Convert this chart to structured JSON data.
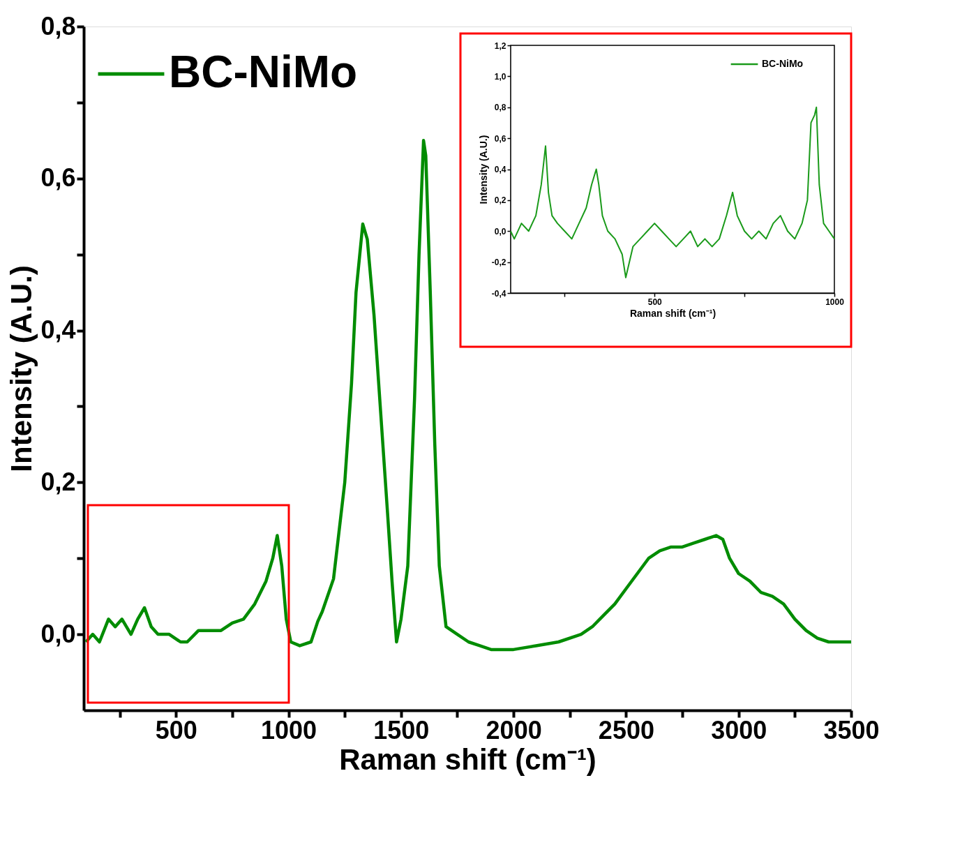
{
  "chart_data": [
    {
      "type": "line",
      "xlabel": "Raman shift (cm⁻¹)",
      "ylabel": "Intensity (A.U.)",
      "legend": "top left",
      "grid": false,
      "xlim": [
        90,
        3500
      ],
      "ylim": [
        -0.1,
        0.8
      ],
      "xticks": [
        {
          "value": 250,
          "label": null
        },
        {
          "value": 500,
          "label": "500"
        },
        {
          "value": 750,
          "label": null
        },
        {
          "value": 1000,
          "label": "1000"
        },
        {
          "value": 1250,
          "label": null
        },
        {
          "value": 1500,
          "label": "1500"
        },
        {
          "value": 1750,
          "label": null
        },
        {
          "value": 2000,
          "label": "2000"
        },
        {
          "value": 2250,
          "label": null
        },
        {
          "value": 2500,
          "label": "2500"
        },
        {
          "value": 2750,
          "label": null
        },
        {
          "value": 3000,
          "label": "3000"
        },
        {
          "value": 3250,
          "label": null
        },
        {
          "value": 3500,
          "label": "3500"
        }
      ],
      "yticks": [
        {
          "value": 0,
          "label": "0,0"
        },
        {
          "value": 0.1,
          "label": null
        },
        {
          "value": 0.2,
          "label": "0,2"
        },
        {
          "value": 0.3,
          "label": null
        },
        {
          "value": 0.4,
          "label": "0,4"
        },
        {
          "value": 0.5,
          "label": null
        },
        {
          "value": 0.6,
          "label": "0,6"
        },
        {
          "value": 0.7,
          "label": null
        },
        {
          "value": 0.8,
          "label": "0,8"
        }
      ],
      "series": [
        {
          "name": "BC-NiMo",
          "color": "#008c00",
          "x": [
            100,
            130,
            160,
            200,
            230,
            260,
            300,
            330,
            360,
            390,
            420,
            470,
            520,
            550,
            600,
            650,
            700,
            750,
            800,
            850,
            900,
            930,
            950,
            970,
            990,
            1010,
            1050,
            1100,
            1130,
            1150,
            1200,
            1250,
            1280,
            1300,
            1330,
            1350,
            1380,
            1410,
            1440,
            1460,
            1480,
            1500,
            1530,
            1560,
            1580,
            1600,
            1610,
            1630,
            1650,
            1670,
            1700,
            1750,
            1800,
            1850,
            1900,
            1950,
            2000,
            2100,
            2200,
            2300,
            2350,
            2400,
            2450,
            2500,
            2550,
            2600,
            2650,
            2700,
            2750,
            2800,
            2850,
            2900,
            2930,
            2960,
            3000,
            3050,
            3100,
            3150,
            3200,
            3250,
            3300,
            3350,
            3400,
            3450,
            3500
          ],
          "values": [
            -0.01,
            0.0,
            -0.01,
            0.02,
            0.01,
            0.02,
            0.0,
            0.02,
            0.035,
            0.01,
            0.0,
            0.0,
            -0.01,
            -0.01,
            0.005,
            0.005,
            0.005,
            0.015,
            0.02,
            0.04,
            0.07,
            0.1,
            0.13,
            0.09,
            0.02,
            -0.01,
            -0.015,
            -0.01,
            0.017,
            0.03,
            0.073,
            0.2,
            0.33,
            0.45,
            0.54,
            0.52,
            0.42,
            0.29,
            0.16,
            0.07,
            -0.01,
            0.02,
            0.09,
            0.31,
            0.5,
            0.65,
            0.63,
            0.45,
            0.25,
            0.09,
            0.01,
            0.0,
            -0.01,
            -0.015,
            -0.02,
            -0.02,
            -0.02,
            -0.015,
            -0.01,
            0.0,
            0.01,
            0.025,
            0.04,
            0.06,
            0.08,
            0.1,
            0.11,
            0.115,
            0.115,
            0.12,
            0.125,
            0.13,
            0.125,
            0.1,
            0.08,
            0.07,
            0.055,
            0.05,
            0.04,
            0.02,
            0.005,
            -0.005,
            -0.01,
            -0.01,
            -0.01
          ]
        }
      ]
    },
    {
      "type": "line",
      "xlabel": "Raman shift (cm⁻¹)",
      "ylabel": "Intensity (A.U.)",
      "legend": "top right",
      "grid": false,
      "xlim": [
        100,
        1000
      ],
      "ylim": [
        -0.4,
        1.2
      ],
      "xticks": [
        {
          "value": 250,
          "label": null
        },
        {
          "value": 500,
          "label": "500"
        },
        {
          "value": 750,
          "label": null
        },
        {
          "value": 1000,
          "label": "1000"
        }
      ],
      "yticks": [
        {
          "value": -0.4,
          "label": "-0,4"
        },
        {
          "value": -0.2,
          "label": "-0,2"
        },
        {
          "value": 0,
          "label": "0,0"
        },
        {
          "value": 0.2,
          "label": "0,2"
        },
        {
          "value": 0.4,
          "label": "0,4"
        },
        {
          "value": 0.6,
          "label": "0,6"
        },
        {
          "value": 0.8,
          "label": "0,8"
        },
        {
          "value": 1.0,
          "label": "1,0"
        },
        {
          "value": 1.2,
          "label": "1,2"
        }
      ],
      "series": [
        {
          "name": "BC-NiMo",
          "color": "#1a9a1a",
          "x": [
            100,
            110,
            130,
            150,
            170,
            185,
            197,
            205,
            215,
            230,
            250,
            270,
            290,
            310,
            325,
            338,
            345,
            355,
            370,
            390,
            410,
            420,
            440,
            460,
            480,
            500,
            520,
            540,
            560,
            580,
            600,
            620,
            640,
            660,
            680,
            700,
            717,
            730,
            750,
            770,
            790,
            810,
            830,
            850,
            870,
            890,
            910,
            925,
            935,
            945,
            950,
            958,
            970,
            985,
            1000
          ],
          "values": [
            0.0,
            -0.05,
            0.05,
            0.0,
            0.1,
            0.3,
            0.55,
            0.25,
            0.1,
            0.05,
            0.0,
            -0.05,
            0.05,
            0.15,
            0.3,
            0.4,
            0.3,
            0.1,
            0.0,
            -0.05,
            -0.15,
            -0.3,
            -0.1,
            -0.05,
            0.0,
            0.05,
            0.0,
            -0.05,
            -0.1,
            -0.05,
            0.0,
            -0.1,
            -0.05,
            -0.1,
            -0.05,
            0.1,
            0.25,
            0.1,
            0.0,
            -0.05,
            0.0,
            -0.05,
            0.05,
            0.1,
            0.0,
            -0.05,
            0.05,
            0.2,
            0.7,
            0.75,
            0.8,
            0.3,
            0.05,
            0.0,
            -0.05
          ]
        }
      ]
    }
  ]
}
